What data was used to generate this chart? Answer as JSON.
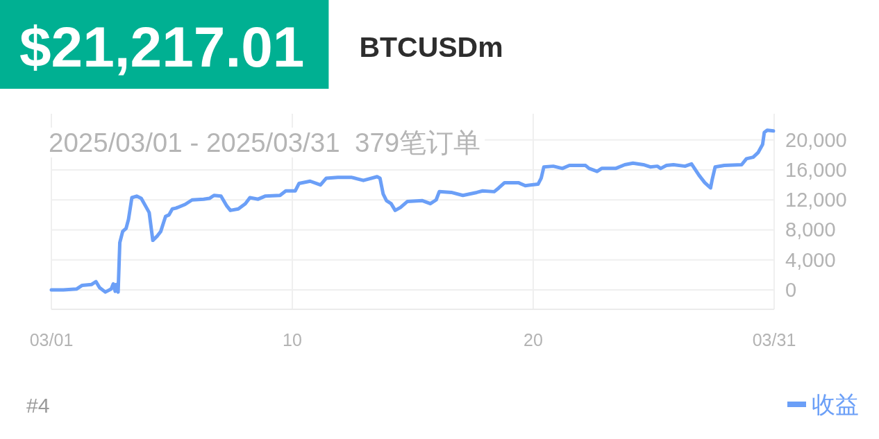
{
  "chart_data": {
    "type": "line",
    "title": "$21,217.01",
    "subtitle": "BTCUSDm",
    "annotations": [
      "2025/03/01 - 2025/03/31  379笔订单",
      "#4"
    ],
    "x": [
      0,
      0.5,
      1.04,
      1.28,
      1.66,
      1.85,
      2.0,
      2.24,
      2.48,
      2.57,
      2.65,
      2.69,
      2.77,
      2.84,
      2.96,
      3.1,
      3.2,
      3.34,
      3.54,
      3.73,
      4.01,
      4.06,
      4.21,
      4.4,
      4.54,
      4.64,
      4.74,
      4.88,
      5.02,
      5.17,
      5.55,
      5.84,
      6.32,
      6.56,
      6.75,
      7.04,
      7.28,
      7.43,
      7.76,
      8.05,
      8.24,
      8.58,
      8.87,
      9.49,
      9.73,
      10.12,
      10.28,
      10.74,
      11.17,
      11.41,
      11.89,
      12.47,
      12.95,
      13.52,
      13.64,
      13.77,
      13.91,
      14.1,
      14.27,
      14.49,
      14.78,
      15.4,
      15.73,
      15.97,
      16.1,
      16.6,
      17.08,
      17.66,
      17.9,
      18.38,
      18.57,
      18.81,
      19.38,
      19.67,
      20.2,
      20.33,
      20.44,
      20.83,
      21.21,
      21.5,
      22.17,
      22.32,
      22.65,
      22.84,
      23.42,
      23.8,
      24.14,
      24.57,
      24.86,
      25.15,
      25.29,
      25.53,
      25.82,
      26.3,
      26.57,
      26.88,
      27.12,
      27.36,
      27.42,
      27.55,
      27.93,
      28.65,
      28.85,
      29.13,
      29.33,
      29.52,
      29.59,
      29.71,
      29.97
    ],
    "series": [
      {
        "name": "收益",
        "color": "#6b9ff7",
        "values": [
          0,
          0,
          100,
          600,
          700,
          1100,
          300,
          -300,
          100,
          800,
          -200,
          700,
          -300,
          6300,
          7800,
          8200,
          9400,
          12300,
          12500,
          12200,
          10600,
          10300,
          6600,
          7200,
          7800,
          8800,
          9800,
          10000,
          10800,
          10900,
          11400,
          12000,
          12100,
          12200,
          12600,
          12500,
          11200,
          10600,
          10800,
          11500,
          12300,
          12100,
          12500,
          12600,
          13200,
          13200,
          14200,
          14500,
          14000,
          14900,
          15000,
          15000,
          14600,
          15100,
          14900,
          12800,
          11900,
          11500,
          10600,
          11000,
          11800,
          11900,
          11500,
          12000,
          13100,
          13000,
          12600,
          13000,
          13200,
          13100,
          13600,
          14300,
          14300,
          13900,
          14100,
          14900,
          16400,
          16500,
          16200,
          16600,
          16600,
          16200,
          15800,
          16200,
          16200,
          16700,
          16900,
          16700,
          16400,
          16500,
          16200,
          16600,
          16700,
          16500,
          16800,
          15300,
          14300,
          13600,
          14600,
          16400,
          16600,
          16700,
          17500,
          17700,
          18300,
          19400,
          21000,
          21300,
          21200
        ]
      }
    ],
    "xlim": [
      0,
      30
    ],
    "xticks": [
      {
        "value": 0,
        "label": "03/01"
      },
      10,
      20,
      {
        "value": 30,
        "label": "03/31"
      }
    ],
    "ylim": [
      -2600,
      23500
    ],
    "yticks": [
      0,
      {
        "value": 4000,
        "label": "4,000"
      },
      {
        "value": 8000,
        "label": "8,000"
      },
      {
        "value": 12000,
        "label": "12,000"
      },
      {
        "value": 16000,
        "label": "16,000"
      },
      {
        "value": 20000,
        "label": "20,000"
      }
    ],
    "grid": true,
    "legend": "bottom right"
  }
}
